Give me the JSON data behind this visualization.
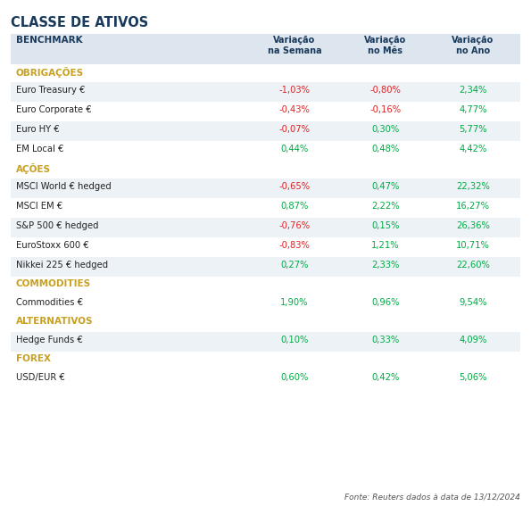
{
  "title": "CLASSE DE ATIVOS",
  "title_color": "#1a3a5c",
  "col_header_color": "#1a3a5c",
  "col_headers": [
    "BENCHMARK",
    "Variação\nna Semana",
    "Variação\nno Mês",
    "Variação\nno Ano"
  ],
  "sections": [
    {
      "label": "OBRIGAÇÕES",
      "label_color": "#c8a020",
      "rows": [
        {
          "name": "Euro Treasury €",
          "semana": "-1,03%",
          "mes": "-0,80%",
          "ano": "2,34%",
          "sc": "#dd2222",
          "mc": "#dd2222",
          "ac": "#00aa44"
        },
        {
          "name": "Euro Corporate €",
          "semana": "-0,43%",
          "mes": "-0,16%",
          "ano": "4,77%",
          "sc": "#dd2222",
          "mc": "#dd2222",
          "ac": "#00aa44"
        },
        {
          "name": "Euro HY €",
          "semana": "-0,07%",
          "mes": "0,30%",
          "ano": "5,77%",
          "sc": "#dd2222",
          "mc": "#00aa44",
          "ac": "#00aa44"
        },
        {
          "name": "EM Local €",
          "semana": "0,44%",
          "mes": "0,48%",
          "ano": "4,42%",
          "sc": "#00aa44",
          "mc": "#00aa44",
          "ac": "#00aa44"
        }
      ]
    },
    {
      "label": "AÇÕES",
      "label_color": "#c8a020",
      "rows": [
        {
          "name": "MSCI World € hedged",
          "semana": "-0,65%",
          "mes": "0,47%",
          "ano": "22,32%",
          "sc": "#dd2222",
          "mc": "#00aa44",
          "ac": "#00aa44"
        },
        {
          "name": "MSCI EM €",
          "semana": "0,87%",
          "mes": "2,22%",
          "ano": "16,27%",
          "sc": "#00aa44",
          "mc": "#00aa44",
          "ac": "#00aa44"
        },
        {
          "name": "S&P 500 € hedged",
          "semana": "-0,76%",
          "mes": "0,15%",
          "ano": "26,36%",
          "sc": "#dd2222",
          "mc": "#00aa44",
          "ac": "#00aa44"
        },
        {
          "name": "EuroStoxx 600 €",
          "semana": "-0,83%",
          "mes": "1,21%",
          "ano": "10,71%",
          "sc": "#dd2222",
          "mc": "#00aa44",
          "ac": "#00aa44"
        },
        {
          "name": "Nikkei 225 € hedged",
          "semana": "0,27%",
          "mes": "2,33%",
          "ano": "22,60%",
          "sc": "#00aa44",
          "mc": "#00aa44",
          "ac": "#00aa44"
        }
      ]
    },
    {
      "label": "COMMODITIES",
      "label_color": "#c8a020",
      "rows": [
        {
          "name": "Commodities €",
          "semana": "1,90%",
          "mes": "0,96%",
          "ano": "9,54%",
          "sc": "#00aa44",
          "mc": "#00aa44",
          "ac": "#00aa44"
        }
      ]
    },
    {
      "label": "ALTERNATIVOS",
      "label_color": "#c8a020",
      "rows": [
        {
          "name": "Hedge Funds €",
          "semana": "0,10%",
          "mes": "0,33%",
          "ano": "4,09%",
          "sc": "#00aa44",
          "mc": "#00aa44",
          "ac": "#00aa44"
        }
      ]
    },
    {
      "label": "FOREX",
      "label_color": "#c8a020",
      "rows": [
        {
          "name": "USD/EUR €",
          "semana": "0,60%",
          "mes": "0,42%",
          "ano": "5,06%",
          "sc": "#00aa44",
          "mc": "#00aa44",
          "ac": "#00aa44"
        }
      ]
    }
  ],
  "footer": "Fonte: Reuters dados à data de 13/12/2024",
  "footer_color": "#555555",
  "bg_color": "#ffffff",
  "header_bg": "#dde5ee",
  "row_bg_alt": "#edf2f7",
  "row_bg_white": "#ffffff"
}
